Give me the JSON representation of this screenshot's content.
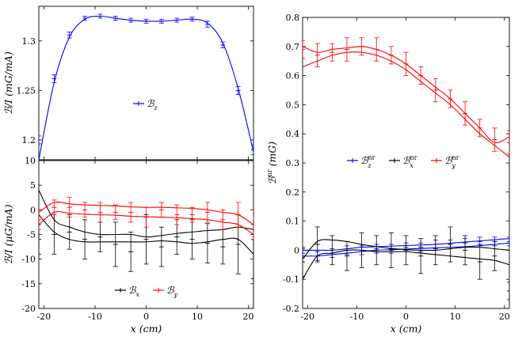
{
  "chart_data": [
    {
      "id": "top-left",
      "type": "line",
      "title": "",
      "xlabel": "",
      "ylabel": "ℬ/I (mG/mA)",
      "xlim": [
        -21,
        21
      ],
      "ylim": [
        1.18,
        1.335
      ],
      "yticks": [
        "1.2",
        "1.25",
        "1.3"
      ],
      "xticks": [],
      "legend": {
        "position": "center",
        "entries": [
          "ℬ_z"
        ]
      },
      "x": [
        -21,
        -18,
        -15,
        -12,
        -9,
        -6,
        -3,
        0,
        3,
        6,
        9,
        12,
        15,
        18,
        21
      ],
      "series": [
        {
          "name": "ℬ_z",
          "color": "#0000ff",
          "fit": [
            1.18,
            1.258,
            1.304,
            1.322,
            1.325,
            1.323,
            1.321,
            1.32,
            1.32,
            1.321,
            1.322,
            1.318,
            1.298,
            1.252,
            1.188
          ],
          "points": [
            1.2,
            1.262,
            1.306,
            1.323,
            1.325,
            1.323,
            1.321,
            1.32,
            1.32,
            1.321,
            1.322,
            1.317,
            1.296,
            1.25,
            1.19
          ],
          "err": [
            0.004,
            0.004,
            0.003,
            0.002,
            0.002,
            0.002,
            0.002,
            0.002,
            0.002,
            0.002,
            0.002,
            0.003,
            0.003,
            0.004,
            0.005
          ]
        }
      ]
    },
    {
      "id": "bottom-left",
      "type": "line",
      "title": "",
      "xlabel": "x (cm)",
      "ylabel": "ℬ/I (μG/mA)",
      "xlim": [
        -21,
        21
      ],
      "ylim": [
        -20,
        10
      ],
      "yticks": [
        "-20",
        "-15",
        "-10",
        "-5",
        "0",
        "5",
        "10"
      ],
      "xticks": [
        "-20",
        "-10",
        "0",
        "10",
        "20"
      ],
      "legend": {
        "position": "bottom-center",
        "entries": [
          "ℬ_x",
          "ℬ_y"
        ]
      },
      "x": [
        -21,
        -18,
        -15,
        -12,
        -9,
        -6,
        -3,
        0,
        3,
        6,
        9,
        12,
        15,
        18,
        21
      ],
      "series": [
        {
          "name": "ℬ_x",
          "color": "#000000",
          "fit_upper": [
            4,
            -2,
            -3.5,
            -4.5,
            -5,
            -5,
            -5,
            -5.5,
            -5.2,
            -4.8,
            -4.5,
            -4.2,
            -4,
            -3.5,
            -4
          ],
          "fit_lower": [
            -1,
            -4.5,
            -6,
            -6.5,
            -6.5,
            -6.5,
            -6.5,
            -6.5,
            -6.3,
            -6.5,
            -6.8,
            -6.5,
            -6,
            -6,
            -9
          ],
          "points": [
            -6,
            -5,
            -4.5,
            -6,
            -5.5,
            -7,
            -8.5,
            -6,
            -7.5,
            -5.5,
            -6,
            -6.8,
            -7.5,
            -7,
            -14
          ],
          "err": [
            3,
            4,
            3.5,
            4,
            3,
            4.5,
            4,
            5,
            4,
            3.5,
            4,
            4,
            3.5,
            6,
            8
          ]
        },
        {
          "name": "ℬ_y",
          "color": "#ff0000",
          "fit_upper": [
            -0.5,
            1.5,
            1.2,
            1,
            0.9,
            0.8,
            0.6,
            0.5,
            0.5,
            0.4,
            0.3,
            0,
            -0.5,
            -1,
            -3
          ],
          "fit_lower": [
            -3,
            -0.5,
            -0.7,
            -0.9,
            -1,
            -1.1,
            -1.3,
            -1.4,
            -1.5,
            -1.6,
            -1.8,
            -2,
            -2.5,
            -3,
            -5
          ],
          "points": [
            -2,
            0.5,
            0.5,
            0,
            -0.5,
            -0.5,
            -0.5,
            -1.5,
            0,
            -1,
            -1,
            -0.5,
            -2,
            -1,
            -3
          ],
          "err": [
            2,
            1.5,
            2,
            1.5,
            2,
            1.5,
            2,
            2,
            1.5,
            2,
            1.5,
            2,
            2,
            2.5,
            3
          ]
        }
      ]
    },
    {
      "id": "right",
      "type": "line",
      "title": "",
      "xlabel": "x (cm)",
      "ylabel": "ℬ^nr (mG)",
      "xlim": [
        -21,
        21
      ],
      "ylim": [
        -0.2,
        0.8
      ],
      "yticks": [
        "-0.2",
        "-0.1",
        "0",
        "0.1",
        "0.2",
        "0.3",
        "0.4",
        "0.5",
        "0.6",
        "0.7",
        "0.8"
      ],
      "xticks": [
        "-20",
        "-10",
        "0",
        "10",
        "20"
      ],
      "legend": {
        "position": "center",
        "entries": [
          "ℬ_z^nr",
          "ℬ_x^nr",
          "ℬ_y^nr"
        ]
      },
      "x": [
        -21,
        -18,
        -15,
        -12,
        -9,
        -6,
        -3,
        0,
        3,
        6,
        9,
        12,
        15,
        18,
        21
      ],
      "series": [
        {
          "name": "ℬ_z^nr",
          "color": "#0000ff",
          "fit_upper": [
            0.0,
            0.0,
            0.0,
            0.005,
            0.01,
            0.012,
            0.014,
            0.016,
            0.018,
            0.02,
            0.024,
            0.028,
            0.032,
            0.036,
            0.04
          ],
          "fit_lower": [
            -0.02,
            -0.02,
            -0.015,
            -0.01,
            -0.005,
            0.0,
            0.002,
            0.004,
            0.006,
            0.008,
            0.01,
            0.012,
            0.016,
            0.02,
            0.025
          ],
          "points": [
            -0.01,
            -0.02,
            -0.01,
            0.0,
            0.0,
            0.005,
            0.005,
            0.01,
            0.01,
            0.02,
            0.02,
            0.025,
            0.03,
            0.03,
            0.03
          ],
          "err": [
            0.015,
            0.015,
            0.015,
            0.015,
            0.015,
            0.015,
            0.015,
            0.015,
            0.015,
            0.015,
            0.015,
            0.015,
            0.015,
            0.015,
            0.015
          ]
        },
        {
          "name": "ℬ_x^nr",
          "color": "#000000",
          "fit_upper": [
            -0.03,
            0.03,
            0.035,
            0.03,
            0.02,
            0.012,
            0.006,
            0.002,
            0.0,
            0.0,
            0.005,
            0.01,
            0.01,
            0.005,
            0.0
          ],
          "fit_lower": [
            -0.1,
            -0.02,
            -0.01,
            0.0,
            0.0,
            -0.005,
            -0.005,
            -0.005,
            -0.01,
            -0.015,
            -0.02,
            -0.025,
            -0.03,
            -0.035,
            -0.05
          ],
          "points": [
            -0.04,
            0.02,
            0.0,
            -0.02,
            0.0,
            0.0,
            0.0,
            0.0,
            -0.02,
            0.0,
            0.02,
            0.0,
            -0.04,
            -0.02,
            -0.14
          ],
          "err": [
            0.05,
            0.06,
            0.05,
            0.05,
            0.06,
            0.05,
            0.06,
            0.05,
            0.06,
            0.05,
            0.06,
            0.05,
            0.06,
            0.05,
            0.03
          ]
        },
        {
          "name": "ℬ_y^nr",
          "color": "#ff0000",
          "fit_upper": [
            0.7,
            0.68,
            0.69,
            0.695,
            0.7,
            0.69,
            0.67,
            0.64,
            0.6,
            0.56,
            0.52,
            0.47,
            0.42,
            0.37,
            0.39
          ],
          "fit_lower": [
            0.63,
            0.65,
            0.67,
            0.68,
            0.68,
            0.67,
            0.65,
            0.62,
            0.58,
            0.54,
            0.5,
            0.45,
            0.4,
            0.36,
            0.32
          ],
          "points": [
            0.69,
            0.67,
            0.68,
            0.69,
            0.7,
            0.69,
            0.67,
            0.64,
            0.6,
            0.55,
            0.52,
            0.47,
            0.42,
            0.38,
            0.37
          ],
          "err": [
            0.03,
            0.04,
            0.03,
            0.04,
            0.03,
            0.04,
            0.03,
            0.04,
            0.03,
            0.04,
            0.03,
            0.04,
            0.03,
            0.04,
            0.04
          ]
        }
      ]
    }
  ]
}
